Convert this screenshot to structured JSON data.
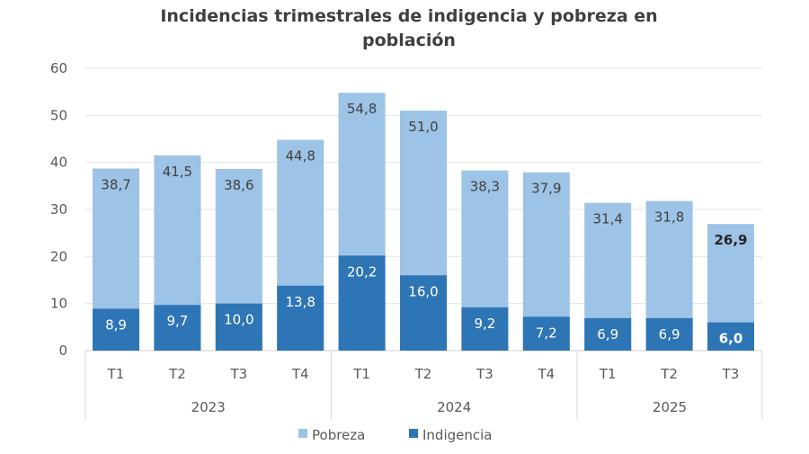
{
  "chart_data": {
    "type": "bar",
    "title_lines": [
      "Incidencias trimestrales de indigencia y pobreza en",
      "población"
    ],
    "categories": [
      "T1",
      "T2",
      "T3",
      "T4",
      "T1",
      "T2",
      "T3",
      "T4",
      "T1",
      "T2",
      "T3"
    ],
    "groups": [
      {
        "label": "2023",
        "count": 4
      },
      {
        "label": "2024",
        "count": 4
      },
      {
        "label": "2025",
        "count": 3
      }
    ],
    "series": [
      {
        "name": "Pobreza",
        "color": "#9dc3e6",
        "values": [
          38.7,
          41.5,
          38.6,
          44.8,
          54.8,
          51.0,
          38.3,
          37.9,
          31.4,
          31.8,
          26.9
        ],
        "labels": [
          "38,7",
          "41,5",
          "38,6",
          "44,8",
          "54,8",
          "51,0",
          "38,3",
          "37,9",
          "31,4",
          "31,8",
          "26,9"
        ]
      },
      {
        "name": "Indigencia",
        "color": "#2e75b6",
        "values": [
          8.9,
          9.7,
          10.0,
          13.8,
          20.2,
          16.0,
          9.2,
          7.2,
          6.9,
          6.9,
          6.0
        ],
        "labels": [
          "8,9",
          "9,7",
          "10,0",
          "13,8",
          "20,2",
          "16,0",
          "9,2",
          "7,2",
          "6,9",
          "6,9",
          "6,0"
        ]
      }
    ],
    "ylim": [
      0,
      60
    ],
    "yticks": [
      "0",
      "10",
      "20",
      "30",
      "40",
      "50",
      "60"
    ],
    "grid": true,
    "overlap": true,
    "last_label_bold": true,
    "legend_position": "bottom"
  }
}
